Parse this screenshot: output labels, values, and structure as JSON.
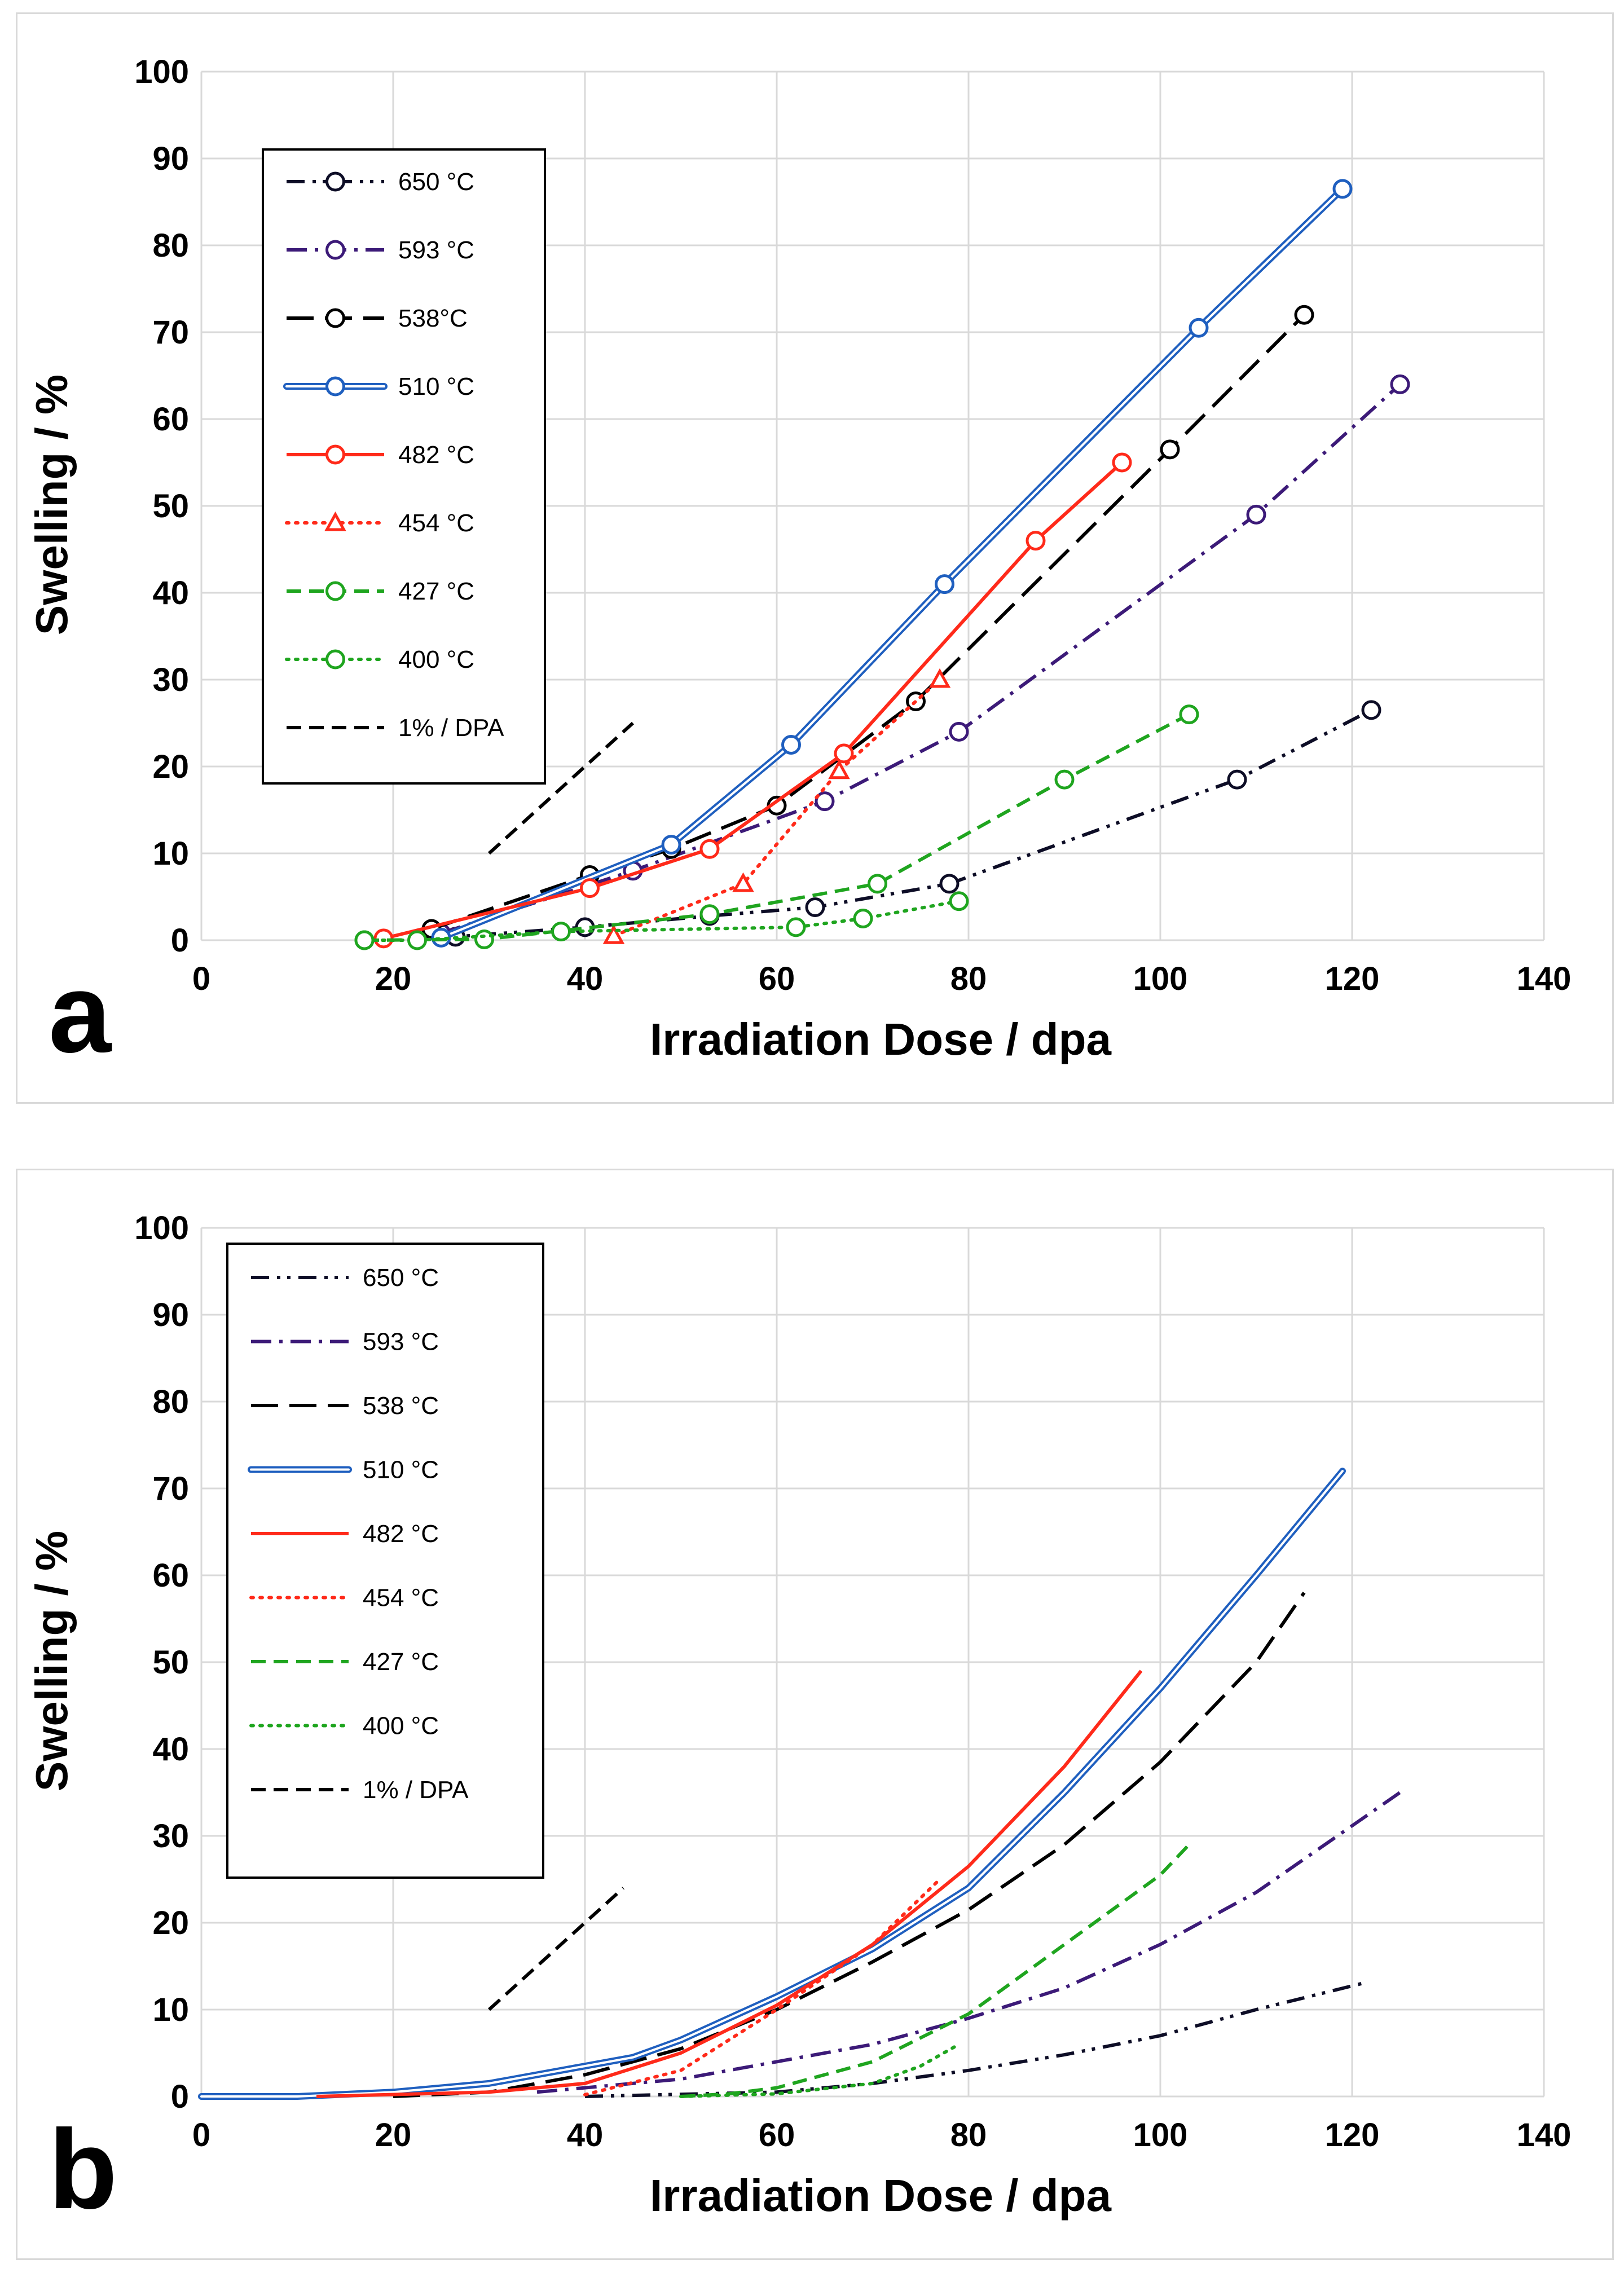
{
  "chart_data": [
    {
      "type": "line",
      "panel_label": "a",
      "xlabel": "Irradiation Dose / dpa",
      "ylabel": "Swelling / %",
      "xlim": [
        0,
        140
      ],
      "ylim": [
        0,
        100
      ],
      "xticks": [
        0,
        20,
        40,
        60,
        80,
        100,
        120,
        140
      ],
      "yticks": [
        0,
        10,
        20,
        30,
        40,
        50,
        60,
        70,
        80,
        90,
        100
      ],
      "grid": true,
      "legend_position": "top-left",
      "series": [
        {
          "name": "650 °C",
          "color": "#0d0d26",
          "dash": "dashdotdot",
          "style": "dashdotdot",
          "marker": "circle",
          "x": [
            24,
            26.5,
            40,
            53,
            64,
            78,
            108,
            122
          ],
          "y": [
            1.2,
            0.4,
            1.5,
            2.8,
            3.8,
            6.5,
            18.5,
            26.5
          ]
        },
        {
          "name": "593 °C",
          "color": "#3c1a78",
          "dash": "dashdot",
          "style": "dashdot",
          "marker": "circle",
          "x": [
            25,
            45,
            65,
            79,
            110,
            125
          ],
          "y": [
            0.8,
            8.0,
            16.0,
            24.0,
            49.0,
            64.0
          ]
        },
        {
          "name": "538°C",
          "color": "#000000",
          "dash": "longdash",
          "style": "longdash",
          "marker": "circle",
          "x": [
            24,
            40.5,
            49,
            60,
            74.5,
            101,
            115
          ],
          "y": [
            1.3,
            7.5,
            10.5,
            15.5,
            27.5,
            56.5,
            72.0
          ]
        },
        {
          "name": "510 °C",
          "color": "#1f5fbf",
          "dash": "double",
          "style": "double",
          "marker": "circle",
          "x": [
            25,
            49,
            61.5,
            77.5,
            104,
            119
          ],
          "y": [
            0.3,
            11.0,
            22.5,
            41.0,
            70.5,
            86.5
          ]
        },
        {
          "name": "482 °C",
          "color": "#ff2a1a",
          "dash": "solid",
          "style": "solid",
          "marker": "circle",
          "x": [
            19,
            40.5,
            53,
            67,
            87,
            96
          ],
          "y": [
            0.2,
            6.0,
            10.5,
            21.5,
            46.0,
            55.0
          ]
        },
        {
          "name": "454 °C",
          "color": "#ff2a1a",
          "dash": "dot",
          "style": "dot",
          "marker": "triangle",
          "x": [
            43,
            56.5,
            66.5,
            77
          ],
          "y": [
            0.5,
            6.5,
            19.5,
            30.0
          ]
        },
        {
          "name": "427 °C",
          "color": "#1fa51f",
          "dash": "dash",
          "style": "dash",
          "marker": "circle",
          "x": [
            17,
            29.5,
            53,
            70.5,
            90,
            103
          ],
          "y": [
            0.0,
            0.1,
            3.0,
            6.5,
            18.5,
            26.0
          ]
        },
        {
          "name": "400 °C",
          "color": "#1fa51f",
          "dash": "dot",
          "style": "dot",
          "marker": "circle",
          "x": [
            17,
            22.5,
            37.5,
            62,
            69,
            79
          ],
          "y": [
            0.0,
            0.0,
            1.0,
            1.5,
            2.5,
            4.5
          ]
        },
        {
          "name": "1% / DPA",
          "color": "#000000",
          "dash": "dash",
          "style": "dash",
          "marker": "none",
          "x": [
            30,
            45
          ],
          "y": [
            10,
            25
          ]
        }
      ]
    },
    {
      "type": "line",
      "panel_label": "b",
      "xlabel": "Irradiation Dose / dpa",
      "ylabel": "Swelling / %",
      "xlim": [
        0,
        140
      ],
      "ylim": [
        0,
        100
      ],
      "xticks": [
        0,
        20,
        40,
        60,
        80,
        100,
        120,
        140
      ],
      "yticks": [
        0,
        10,
        20,
        30,
        40,
        50,
        60,
        70,
        80,
        90,
        100
      ],
      "grid": true,
      "legend_position": "top-left",
      "series": [
        {
          "name": "650 °C",
          "color": "#0d0d26",
          "dash": "dashdotdot",
          "style": "dashdotdot",
          "marker": "none",
          "x": [
            40,
            60,
            70,
            80,
            90,
            100,
            110,
            121
          ],
          "y": [
            0.0,
            0.5,
            1.5,
            3.0,
            4.8,
            7.0,
            10.0,
            13.0
          ]
        },
        {
          "name": "593 °C",
          "color": "#3c1a78",
          "dash": "dashdot",
          "style": "dashdot",
          "marker": "none",
          "x": [
            35,
            50,
            60,
            70,
            80,
            90,
            100,
            110,
            125
          ],
          "y": [
            0.5,
            2.0,
            4.0,
            6.0,
            9.0,
            12.5,
            17.5,
            23.5,
            35.0
          ]
        },
        {
          "name": "538 °C",
          "color": "#000000",
          "dash": "longdash",
          "style": "longdash",
          "marker": "none",
          "x": [
            20,
            30,
            40,
            50,
            60,
            70,
            80,
            90,
            100,
            110,
            115
          ],
          "y": [
            0.0,
            0.5,
            2.5,
            5.5,
            10.0,
            15.5,
            21.5,
            29.0,
            38.5,
            50.0,
            58.0
          ]
        },
        {
          "name": "510 °C",
          "color": "#1f5fbf",
          "dash": "double",
          "style": "double",
          "marker": "none",
          "x": [
            0,
            10,
            20,
            30,
            40,
            45,
            50,
            60,
            70,
            80,
            90,
            100,
            110,
            119
          ],
          "y": [
            0.0,
            0.0,
            0.5,
            1.5,
            3.5,
            4.5,
            6.5,
            11.5,
            17.0,
            24.0,
            35.0,
            47.0,
            60.0,
            72.0
          ]
        },
        {
          "name": "482 °C",
          "color": "#ff2a1a",
          "dash": "solid",
          "style": "solid",
          "marker": "none",
          "x": [
            12,
            30,
            40,
            50,
            60,
            70,
            80,
            90,
            98
          ],
          "y": [
            0.0,
            0.5,
            1.5,
            5.0,
            10.5,
            17.5,
            26.5,
            38.0,
            49.0
          ]
        },
        {
          "name": "454 °C",
          "color": "#ff2a1a",
          "dash": "dot",
          "style": "dot",
          "marker": "none",
          "x": [
            40,
            50,
            60,
            70,
            77
          ],
          "y": [
            0.2,
            3.0,
            10.0,
            17.5,
            25.0
          ]
        },
        {
          "name": "427 °C",
          "color": "#1fa51f",
          "dash": "dash",
          "style": "dash",
          "marker": "none",
          "x": [
            50,
            55,
            60,
            70,
            80,
            90,
            100,
            103
          ],
          "y": [
            0.0,
            0.3,
            1.0,
            4.0,
            9.5,
            17.5,
            25.5,
            29.0
          ]
        },
        {
          "name": "400 °C",
          "color": "#1fa51f",
          "dash": "dot",
          "style": "dot",
          "marker": "none",
          "x": [
            50,
            60,
            70,
            75,
            79
          ],
          "y": [
            0.0,
            0.3,
            1.5,
            3.5,
            6.0
          ]
        },
        {
          "name": "1% / DPA",
          "color": "#000000",
          "dash": "dash",
          "style": "dash",
          "marker": "none",
          "x": [
            30,
            44
          ],
          "y": [
            10,
            24
          ]
        }
      ]
    }
  ]
}
